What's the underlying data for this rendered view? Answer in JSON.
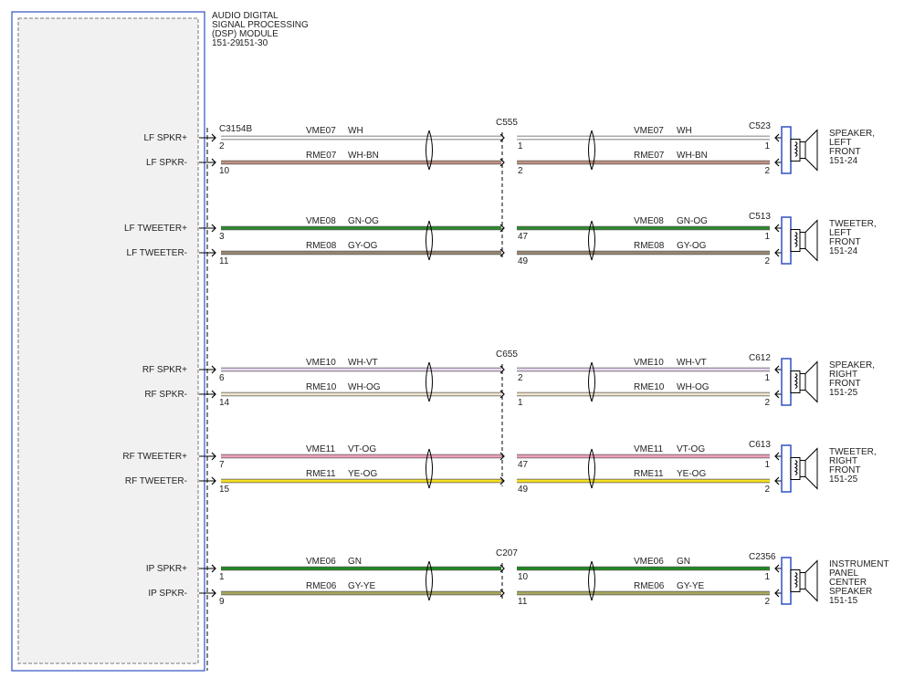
{
  "module": {
    "title_lines": [
      "AUDIO DIGITAL",
      "SIGNAL PROCESSING",
      "(DSP) MODULE"
    ],
    "refs": [
      "151-29",
      "151-30"
    ],
    "connector": "C3154B"
  },
  "groups": [
    {
      "inline_connector": "C555",
      "device_connector": "C523",
      "device_label": [
        "SPEAKER,",
        "LEFT",
        "FRONT",
        "151-24"
      ],
      "wires": [
        {
          "signal": "LF SPKR+",
          "module_pin": "2",
          "circuit": "VME07",
          "color": "WH",
          "inline_pin": "1",
          "device_pin": "1",
          "draw_color": "#ffffff"
        },
        {
          "signal": "LF SPKR-",
          "module_pin": "10",
          "circuit": "RME07",
          "color": "WH-BN",
          "inline_pin": "2",
          "device_pin": "2",
          "draw_color": "#c09080"
        }
      ]
    },
    {
      "device_connector": "C513",
      "device_label": [
        "TWEETER,",
        "LEFT",
        "FRONT",
        "151-24"
      ],
      "wires": [
        {
          "signal": "LF TWEETER+",
          "module_pin": "3",
          "circuit": "VME08",
          "color": "GN-OG",
          "inline_pin": "47",
          "device_pin": "1",
          "draw_color": "#2e8b2e"
        },
        {
          "signal": "LF TWEETER-",
          "module_pin": "11",
          "circuit": "RME08",
          "color": "GY-OG",
          "inline_pin": "49",
          "device_pin": "2",
          "draw_color": "#9a8670"
        }
      ]
    },
    {
      "inline_connector": "C655",
      "device_connector": "C612",
      "device_label": [
        "SPEAKER,",
        "RIGHT",
        "FRONT",
        "151-25"
      ],
      "wires": [
        {
          "signal": "RF SPKR+",
          "module_pin": "6",
          "circuit": "VME10",
          "color": "WH-VT",
          "inline_pin": "2",
          "device_pin": "1",
          "draw_color": "#e6d8ef"
        },
        {
          "signal": "RF SPKR-",
          "module_pin": "14",
          "circuit": "RME10",
          "color": "WH-OG",
          "inline_pin": "1",
          "device_pin": "2",
          "draw_color": "#efe4cc"
        }
      ]
    },
    {
      "device_connector": "C613",
      "device_label": [
        "TWEETER,",
        "RIGHT",
        "FRONT",
        "151-25"
      ],
      "wires": [
        {
          "signal": "RF TWEETER+",
          "module_pin": "7",
          "circuit": "VME11",
          "color": "VT-OG",
          "inline_pin": "47",
          "device_pin": "1",
          "draw_color": "#f0a0b8"
        },
        {
          "signal": "RF TWEETER-",
          "module_pin": "15",
          "circuit": "RME11",
          "color": "YE-OG",
          "inline_pin": "49",
          "device_pin": "2",
          "draw_color": "#f5e020"
        }
      ]
    },
    {
      "inline_connector": "C207",
      "device_connector": "C2356",
      "device_label": [
        "INSTRUMENT",
        "PANEL",
        "CENTER",
        "SPEAKER",
        "151-15"
      ],
      "wires": [
        {
          "signal": "IP SPKR+",
          "module_pin": "1",
          "circuit": "VME06",
          "color": "GN",
          "inline_pin": "10",
          "device_pin": "1",
          "draw_color": "#1e8a1e"
        },
        {
          "signal": "IP SPKR-",
          "module_pin": "9",
          "circuit": "RME06",
          "color": "GY-YE",
          "inline_pin": "11",
          "device_pin": "2",
          "draw_color": "#a8a860"
        }
      ]
    }
  ]
}
